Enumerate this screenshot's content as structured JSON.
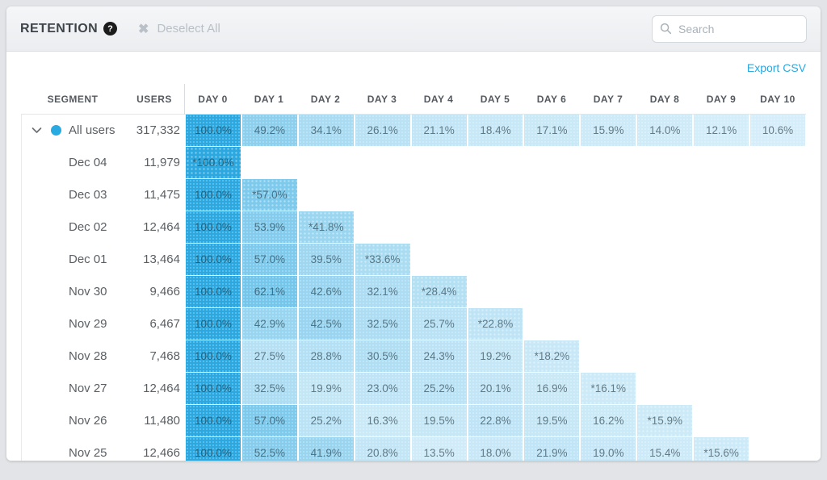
{
  "topbar": {
    "title": "RETENTION",
    "help_icon": "?",
    "deselect_label": "Deselect All",
    "search_placeholder": "Search"
  },
  "table": {
    "export_label": "Export CSV",
    "columns": {
      "segment": "SEGMENT",
      "users": "USERS",
      "days": [
        "DAY 0",
        "DAY 1",
        "DAY 2",
        "DAY 3",
        "DAY 4",
        "DAY 5",
        "DAY 6",
        "DAY 7",
        "DAY 8",
        "DAY 9",
        "DAY 10"
      ]
    },
    "rows": [
      {
        "segment": "All users",
        "users": "317,332",
        "expandable": true,
        "values": [
          "100.0%",
          "49.2%",
          "34.1%",
          "26.1%",
          "21.1%",
          "18.4%",
          "17.1%",
          "15.9%",
          "14.0%",
          "12.1%",
          "10.6%"
        ]
      },
      {
        "segment": "Dec 04",
        "users": "11,979",
        "expandable": false,
        "values": [
          "*100.0%"
        ]
      },
      {
        "segment": "Dec 03",
        "users": "11,475",
        "expandable": false,
        "values": [
          "100.0%",
          "*57.0%"
        ]
      },
      {
        "segment": "Dec 02",
        "users": "12,464",
        "expandable": false,
        "values": [
          "100.0%",
          "53.9%",
          "*41.8%"
        ]
      },
      {
        "segment": "Dec 01",
        "users": "13,464",
        "expandable": false,
        "values": [
          "100.0%",
          "57.0%",
          "39.5%",
          "*33.6%"
        ]
      },
      {
        "segment": "Nov 30",
        "users": "9,466",
        "expandable": false,
        "values": [
          "100.0%",
          "62.1%",
          "42.6%",
          "32.1%",
          "*28.4%"
        ]
      },
      {
        "segment": "Nov 29",
        "users": "6,467",
        "expandable": false,
        "values": [
          "100.0%",
          "42.9%",
          "42.5%",
          "32.5%",
          "25.7%",
          "*22.8%"
        ]
      },
      {
        "segment": "Nov 28",
        "users": "7,468",
        "expandable": false,
        "values": [
          "100.0%",
          "27.5%",
          "28.8%",
          "30.5%",
          "24.3%",
          "19.2%",
          "*18.2%"
        ]
      },
      {
        "segment": "Nov 27",
        "users": "12,464",
        "expandable": false,
        "values": [
          "100.0%",
          "32.5%",
          "19.9%",
          "23.0%",
          "25.2%",
          "20.1%",
          "16.9%",
          "*16.1%"
        ]
      },
      {
        "segment": "Nov 26",
        "users": "11,480",
        "expandable": false,
        "values": [
          "100.0%",
          "57.0%",
          "25.2%",
          "16.3%",
          "19.5%",
          "22.8%",
          "19.5%",
          "16.2%",
          "*15.9%"
        ]
      },
      {
        "segment": "Nov 25",
        "users": "12,466",
        "expandable": false,
        "values": [
          "100.0%",
          "52.5%",
          "41.9%",
          "20.8%",
          "13.5%",
          "18.0%",
          "21.9%",
          "19.0%",
          "15.4%",
          "*15.6%"
        ]
      }
    ]
  },
  "colors": {
    "accent_blue": "#29aae1",
    "cell_base_rgb": "44,168,224",
    "link_blue": "#29a9e0"
  }
}
